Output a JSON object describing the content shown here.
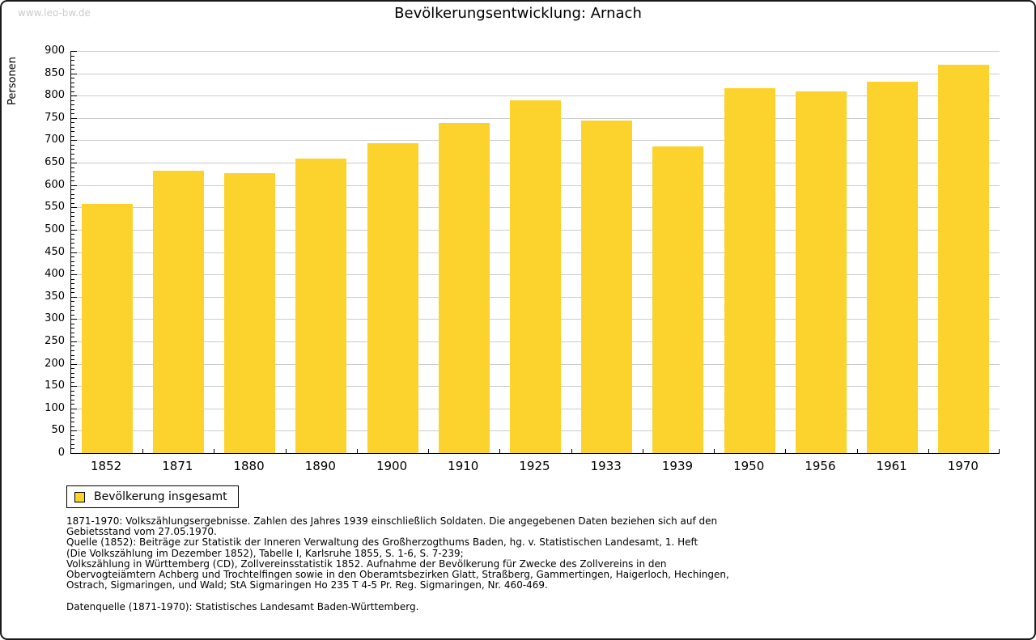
{
  "watermark": "www.leo-bw.de",
  "title": "Bevölkerungsentwicklung: Arnach",
  "chart_data": {
    "type": "bar",
    "title": "Bevölkerungsentwicklung: Arnach",
    "ylabel": "Personen",
    "xlabel": "",
    "categories": [
      "1852",
      "1871",
      "1880",
      "1890",
      "1900",
      "1910",
      "1925",
      "1933",
      "1939",
      "1950",
      "1956",
      "1961",
      "1970"
    ],
    "values": [
      557,
      632,
      627,
      660,
      693,
      739,
      789,
      745,
      686,
      816,
      809,
      832,
      870
    ],
    "ylim": [
      0,
      900
    ],
    "ytick_step": 50,
    "ytick_minor": 10,
    "grid": "horizontal",
    "bar_color": "#FCD32D",
    "grid_color": "#CCCCCC",
    "legend_position": "bottom-left"
  },
  "legend": {
    "items": [
      {
        "label": "Bevölkerung insgesamt",
        "color": "#FCD32D"
      }
    ]
  },
  "footnotes": {
    "lines": [
      "1871-1970: Volkszählungsergebnisse. Zahlen des Jahres 1939 einschließlich Soldaten. Die angegebenen Daten beziehen sich auf den",
      "Gebietsstand vom 27.05.1970.",
      "Quelle (1852): Beiträge zur Statistik der Inneren Verwaltung des Großherzogthums Baden, hg. v. Statistischen Landesamt, 1. Heft",
      "(Die Volkszählung im Dezember 1852), Tabelle I, Karlsruhe 1855, S. 1-6, S. 7-239;",
      "Volkszählung in Württemberg (CD), Zollvereinsstatistik 1852. Aufnahme der Bevölkerung für Zwecke des Zollvereins in den",
      "Obervogteiämtern Achberg und Trochtelfingen sowie in den Oberamtsbezirken Glatt, Straßberg, Gammertingen, Haigerloch, Hechingen,",
      "Ostrach, Sigmaringen, und Wald; StA Sigmaringen Ho 235 T 4-5 Pr. Reg. Sigmaringen, Nr. 460-469."
    ],
    "data_source": "Datenquelle (1871-1970): Statistisches Landesamt Baden-Württemberg."
  }
}
